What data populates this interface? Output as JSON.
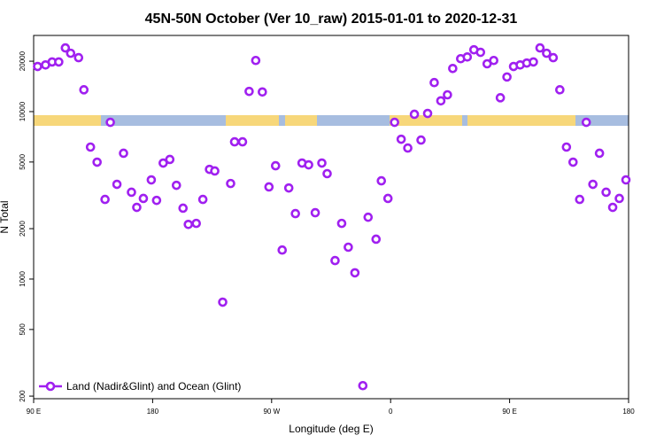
{
  "chart_data": {
    "type": "scatter",
    "title": "45N-50N October (Ver 10_raw)   2015-01-01 to 2020-12-31",
    "x_label": "Longitude (deg E)",
    "y_label": "N Total",
    "log_y": true,
    "xlim": [
      90,
      540
    ],
    "ylim": [
      193,
      28500
    ],
    "xticks": [
      {
        "value": 90,
        "label": "90 E"
      },
      180,
      {
        "value": 270,
        "label": "90 W"
      },
      {
        "value": 360,
        "label": "0"
      },
      {
        "value": 450,
        "label": "90 E"
      },
      {
        "value": 540,
        "label": "180"
      }
    ],
    "yticks": [
      200,
      500,
      1000,
      2000,
      5000,
      10000,
      20000
    ],
    "legend_position": "lower left",
    "series": [
      {
        "name": "Land (Nadir&Glint) and Ocean (Glint)",
        "color": "#a020f0",
        "x": [
          93,
          99,
          104,
          109,
          114,
          118,
          124,
          128,
          133,
          138,
          144,
          148,
          153,
          158,
          164,
          168,
          173,
          179,
          183,
          188,
          193,
          198,
          203,
          207,
          213,
          218,
          223,
          227,
          233,
          239,
          242,
          248,
          253,
          258,
          263,
          268,
          273,
          278,
          283,
          288,
          293,
          298,
          303,
          308,
          312,
          318,
          323,
          328,
          333,
          339,
          343,
          349,
          353,
          358,
          363,
          368,
          373,
          378,
          383,
          388,
          393,
          398,
          403,
          407,
          413,
          418,
          423,
          428,
          433,
          438,
          443,
          448,
          453,
          458,
          463,
          468,
          473,
          478,
          483,
          488,
          493,
          498,
          503,
          508,
          513,
          518,
          523,
          528,
          533,
          538
        ],
        "values": [
          18600,
          19000,
          19800,
          19800,
          24000,
          22300,
          21000,
          13500,
          6140,
          4990,
          2990,
          8630,
          3680,
          5640,
          3300,
          2680,
          3030,
          3910,
          2950,
          4930,
          5180,
          3630,
          2650,
          2120,
          2150,
          2990,
          4520,
          4420,
          728,
          3720,
          6600,
          6600,
          13200,
          20200,
          13100,
          3550,
          4750,
          1490,
          3500,
          2460,
          4930,
          4810,
          2490,
          4930,
          4260,
          1290,
          2150,
          1550,
          1090,
          231,
          2340,
          1730,
          3860,
          3030,
          8630,
          6840,
          6060,
          9640,
          6760,
          9750,
          14900,
          11600,
          12600,
          18100,
          20700,
          21200,
          23400,
          22600,
          19300,
          20200,
          12100,
          16100,
          18600,
          19000,
          19500,
          19800,
          24000,
          22300,
          21000,
          13500,
          6140,
          4990,
          2990,
          8630,
          3680,
          5640,
          3300,
          2680,
          3030,
          3910
        ]
      }
    ]
  }
}
